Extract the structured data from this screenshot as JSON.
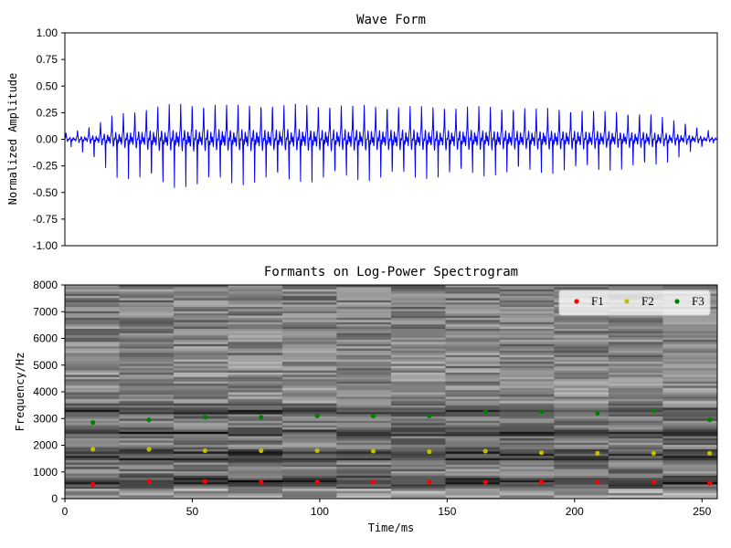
{
  "chart_data": [
    {
      "type": "line",
      "title": "Wave Form",
      "xlabel": "",
      "ylabel": "Normalized Amplitude",
      "xlim": [
        0,
        256
      ],
      "ylim": [
        -1.0,
        1.0
      ],
      "yticks": [
        "-1.00",
        "-0.75",
        "-0.50",
        "-0.25",
        "0.00",
        "0.25",
        "0.50",
        "0.75",
        "1.00"
      ],
      "yticks_values": [
        -1.0,
        -0.75,
        -0.5,
        -0.25,
        0.0,
        0.25,
        0.5,
        0.75,
        1.0
      ],
      "show_xticks": false,
      "series": [
        {
          "color": "#0000ff",
          "pitch_period_ms": 4.5,
          "envelope": {
            "t": [
              0,
              10,
              20,
              40,
              80,
              120,
              160,
              200,
              230,
              245,
              256
            ],
            "peak": [
              0.05,
              0.1,
              0.2,
              0.28,
              0.28,
              0.27,
              0.26,
              0.24,
              0.2,
              0.12,
              0.05
            ],
            "trough": [
              -0.03,
              -0.18,
              -0.33,
              -0.43,
              -0.38,
              -0.36,
              -0.32,
              -0.28,
              -0.25,
              -0.12,
              -0.02
            ]
          }
        }
      ]
    },
    {
      "type": "scatter",
      "title": "Formants on Log-Power Spectrogram",
      "xlabel": "Time/ms",
      "ylabel": "Frequency/Hz",
      "xlim": [
        0,
        256
      ],
      "ylim": [
        0,
        8000
      ],
      "xticks": [
        0,
        50,
        100,
        150,
        200,
        250
      ],
      "yticks": [
        0,
        1000,
        2000,
        3000,
        4000,
        5000,
        6000,
        7000,
        8000
      ],
      "legend_position": "top-right",
      "spectrogram": {
        "colormap": "gray",
        "frames": 12,
        "frame_width_ms": 21.33,
        "strong_bands_hz": [
          600,
          750,
          1550,
          1750,
          2500,
          3300
        ]
      },
      "x": [
        11,
        33,
        55,
        77,
        99,
        121,
        143,
        165,
        187,
        209,
        231,
        253
      ],
      "series": [
        {
          "name": "F1",
          "color": "#ff0000",
          "values": [
            530,
            650,
            650,
            620,
            620,
            620,
            620,
            620,
            620,
            620,
            620,
            580
          ]
        },
        {
          "name": "F2",
          "color": "#bfbf00",
          "values": [
            1850,
            1850,
            1800,
            1800,
            1800,
            1780,
            1760,
            1780,
            1720,
            1700,
            1700,
            1700
          ]
        },
        {
          "name": "F3",
          "color": "#008000",
          "values": [
            2850,
            2950,
            3050,
            3050,
            3100,
            3100,
            3100,
            3250,
            3250,
            3200,
            3300,
            2950
          ]
        }
      ]
    }
  ]
}
